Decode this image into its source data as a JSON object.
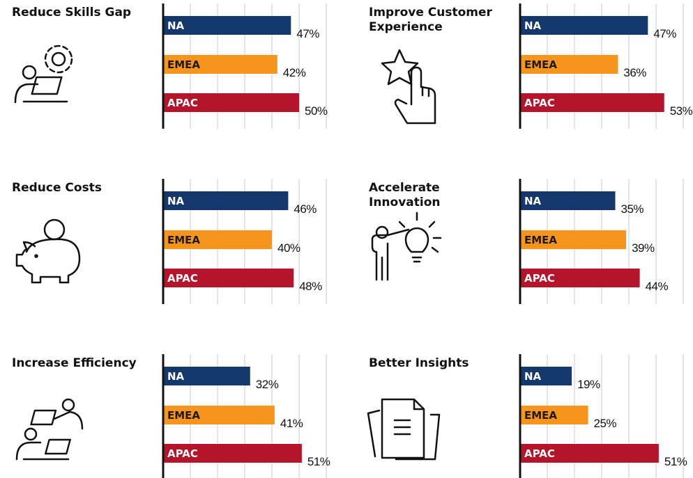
{
  "chart_data": [
    {
      "type": "bar",
      "orientation": "horizontal",
      "title": "Reduce Skills Gap",
      "categories": [
        "NA",
        "EMEA",
        "APAC"
      ],
      "values": [
        47,
        42,
        50
      ],
      "value_labels": [
        "47%",
        "42%",
        "50%"
      ],
      "colors": [
        "#14386b",
        "#f7941d",
        "#b5152b"
      ],
      "xlim": [
        0,
        60
      ],
      "xticks": [
        0,
        10,
        20,
        30,
        40,
        50,
        60
      ],
      "grid": true
    },
    {
      "type": "bar",
      "orientation": "horizontal",
      "title": "Improve Customer Experience",
      "categories": [
        "NA",
        "EMEA",
        "APAC"
      ],
      "values": [
        47,
        36,
        53
      ],
      "value_labels": [
        "47%",
        "36%",
        "53%"
      ],
      "colors": [
        "#14386b",
        "#f7941d",
        "#b5152b"
      ],
      "xlim": [
        0,
        60
      ],
      "xticks": [
        0,
        10,
        20,
        30,
        40,
        50,
        60
      ],
      "grid": true
    },
    {
      "type": "bar",
      "orientation": "horizontal",
      "title": "Reduce Costs",
      "categories": [
        "NA",
        "EMEA",
        "APAC"
      ],
      "values": [
        46,
        40,
        48
      ],
      "value_labels": [
        "46%",
        "40%",
        "48%"
      ],
      "colors": [
        "#14386b",
        "#f7941d",
        "#b5152b"
      ],
      "xlim": [
        0,
        60
      ],
      "xticks": [
        0,
        10,
        20,
        30,
        40,
        50,
        60
      ],
      "grid": true
    },
    {
      "type": "bar",
      "orientation": "horizontal",
      "title": "Accelerate Innovation",
      "categories": [
        "NA",
        "EMEA",
        "APAC"
      ],
      "values": [
        35,
        39,
        44
      ],
      "value_labels": [
        "35%",
        "39%",
        "44%"
      ],
      "colors": [
        "#14386b",
        "#f7941d",
        "#b5152b"
      ],
      "xlim": [
        0,
        60
      ],
      "xticks": [
        0,
        10,
        20,
        30,
        40,
        50,
        60
      ],
      "grid": true
    },
    {
      "type": "bar",
      "orientation": "horizontal",
      "title": "Increase Efficiency",
      "categories": [
        "NA",
        "EMEA",
        "APAC"
      ],
      "values": [
        32,
        41,
        51
      ],
      "value_labels": [
        "32%",
        "41%",
        "51%"
      ],
      "colors": [
        "#14386b",
        "#f7941d",
        "#b5152b"
      ],
      "xlim": [
        0,
        60
      ],
      "xticks": [
        0,
        10,
        20,
        30,
        40,
        50,
        60
      ],
      "grid": true
    },
    {
      "type": "bar",
      "orientation": "horizontal",
      "title": "Better Insights",
      "categories": [
        "NA",
        "EMEA",
        "APAC"
      ],
      "values": [
        19,
        25,
        51
      ],
      "value_labels": [
        "19%",
        "25%",
        "51%"
      ],
      "colors": [
        "#14386b",
        "#f7941d",
        "#b5152b"
      ],
      "xlim": [
        0,
        60
      ],
      "xticks": [
        0,
        10,
        20,
        30,
        40,
        50,
        60
      ],
      "grid": true
    }
  ]
}
